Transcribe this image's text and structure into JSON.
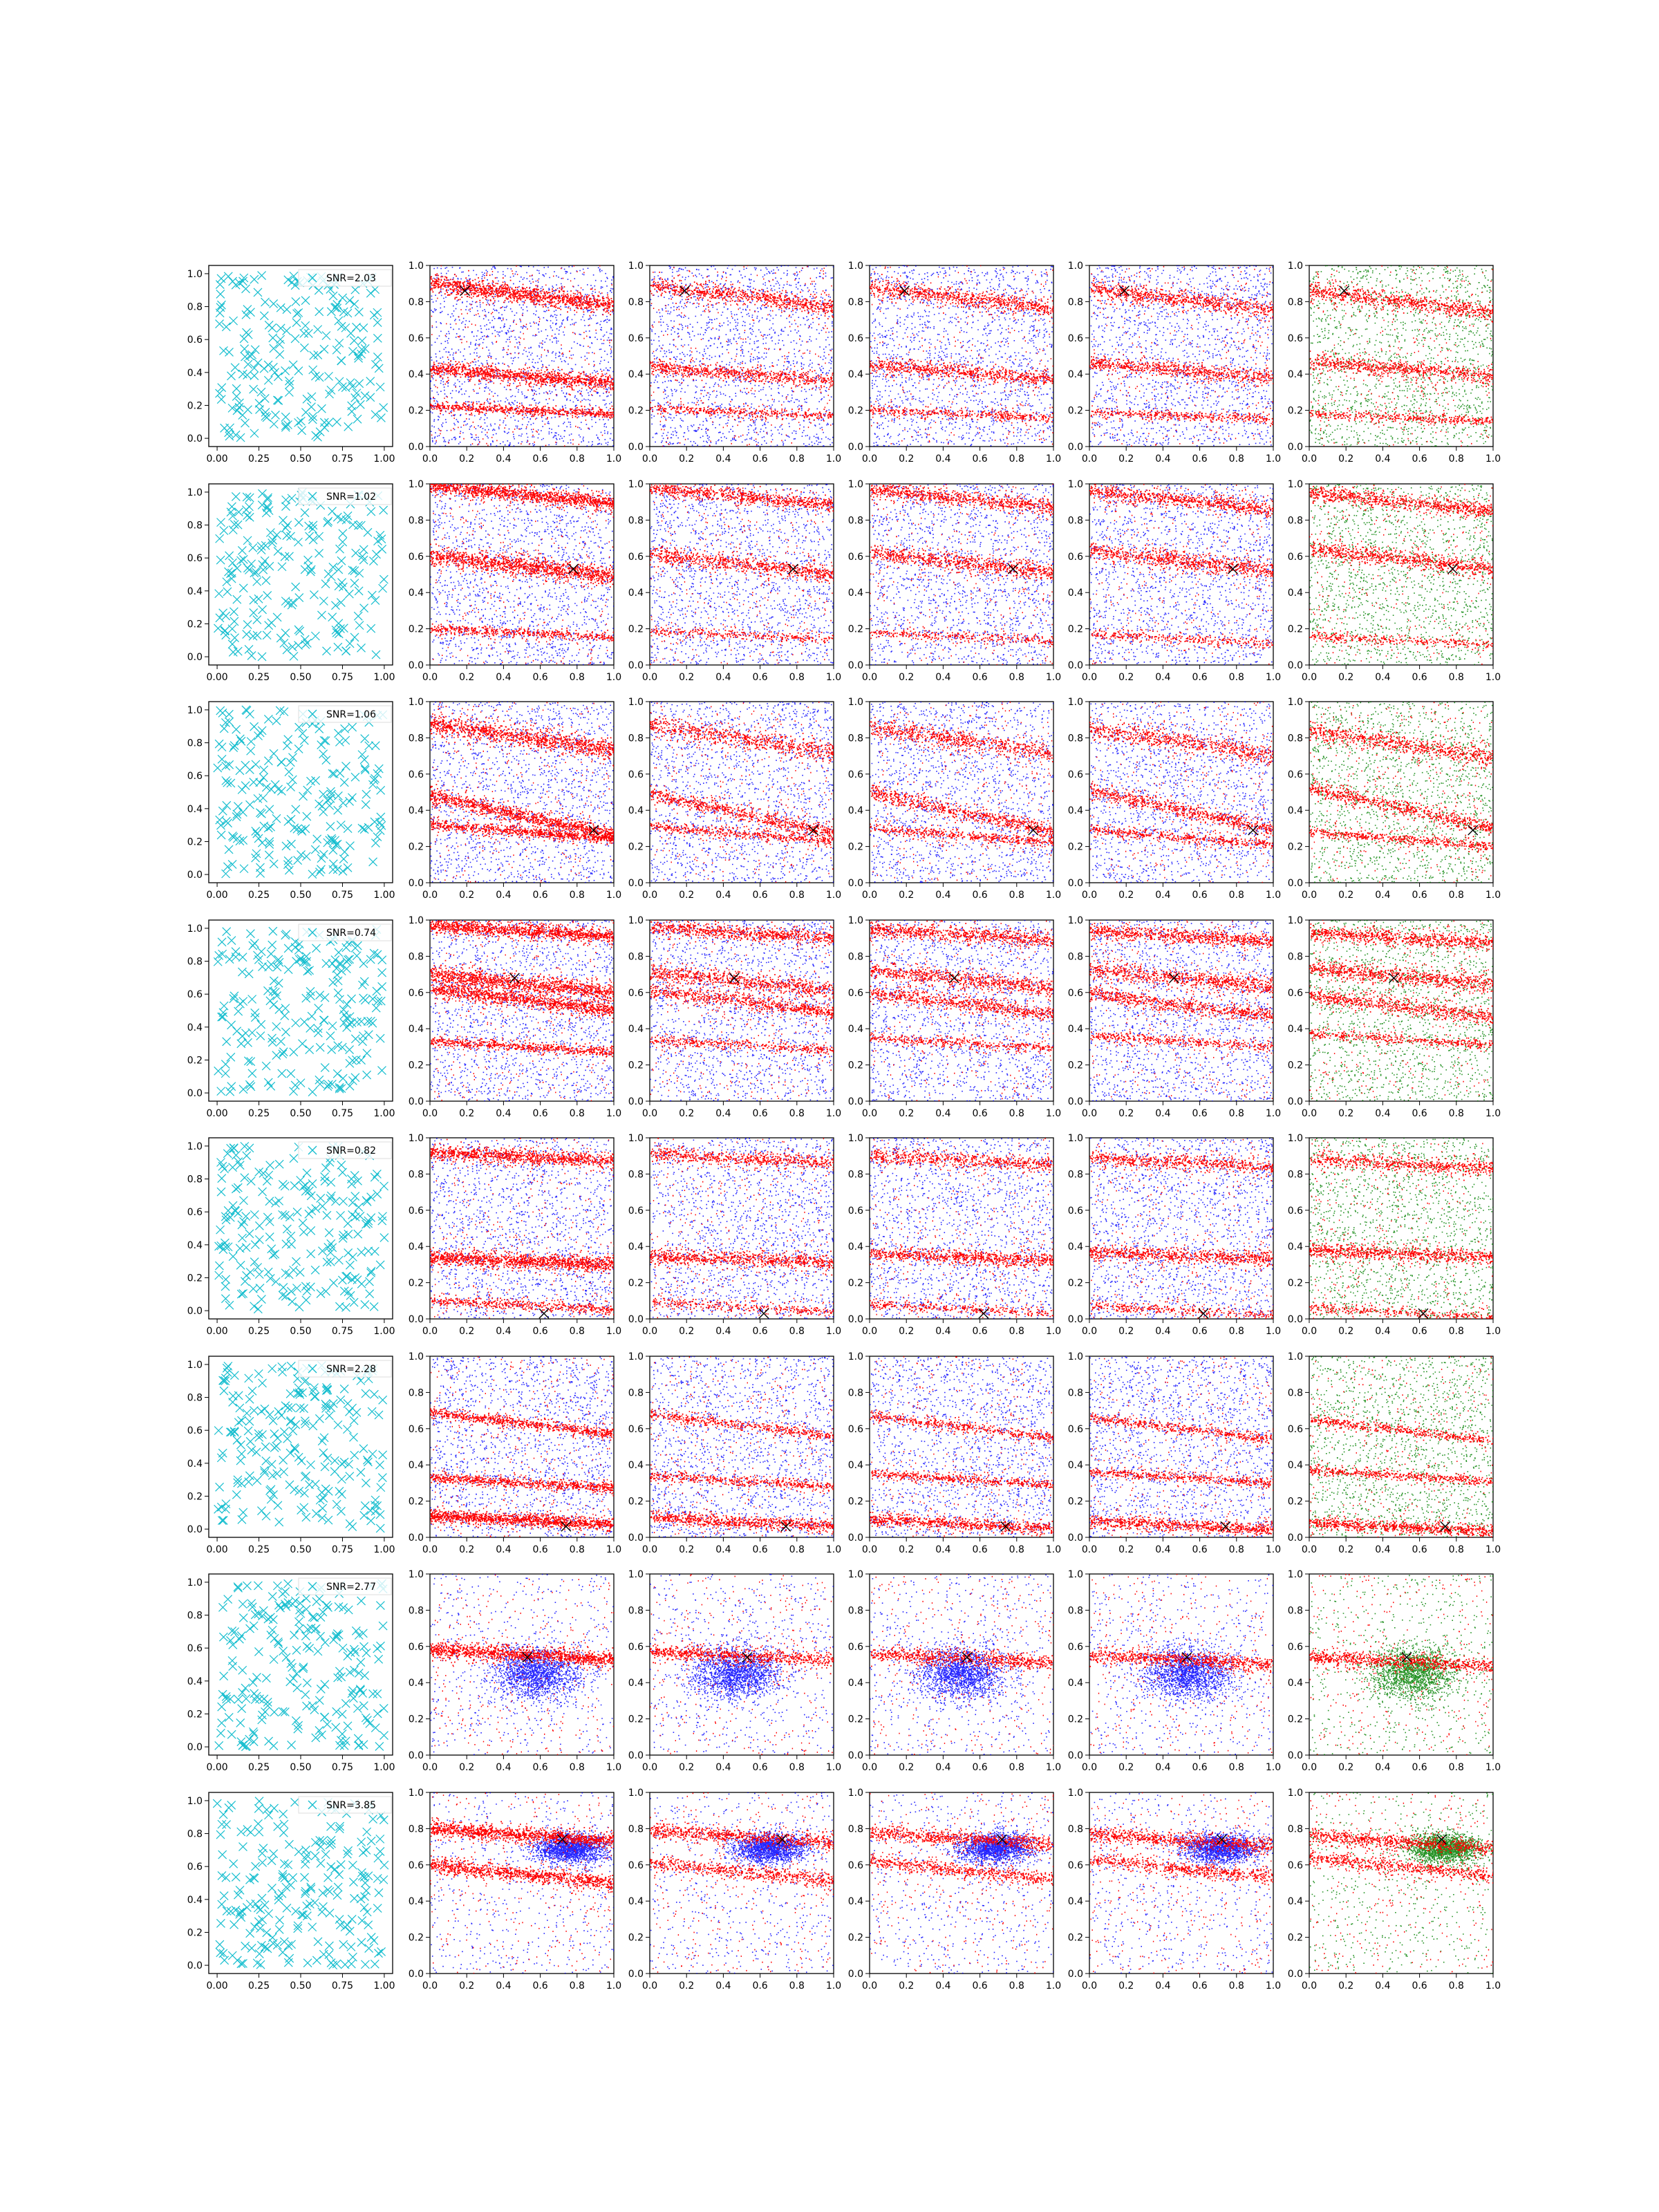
{
  "figure": {
    "rows": 8,
    "cols": 6,
    "background": "#ffffff",
    "colors": {
      "cyan_markers": "#17becf",
      "blue_points": "#0000ff",
      "red_points": "#ff0000",
      "green_points": "#008000",
      "true_position_marker": "#000000",
      "axes": "#000000"
    }
  },
  "chart_data": {
    "type": "scatter",
    "grid": "off",
    "first_column": {
      "description_type": "scatter of cross markers, ~220 uniformly scattered points",
      "marker": "x",
      "color": "#17becf",
      "xlim": [
        -0.05,
        1.05
      ],
      "ylim": [
        -0.05,
        1.05
      ],
      "xticks": [
        "0.00",
        "0.25",
        "0.50",
        "0.75",
        "1.00"
      ],
      "yticks": [
        "0.0",
        "0.2",
        "0.4",
        "0.6",
        "0.8",
        "1.0"
      ],
      "legend_placement": "upper-right"
    },
    "other_columns": {
      "xlim": [
        0,
        1
      ],
      "ylim": [
        0,
        1
      ],
      "xticks": [
        "0.0",
        "0.2",
        "0.4",
        "0.6",
        "0.8",
        "1.0"
      ],
      "yticks": [
        "0.0",
        "0.2",
        "0.4",
        "0.6",
        "0.8",
        "1.0"
      ],
      "column_colors": [
        [
          "#0000ff",
          "#ff0000"
        ],
        [
          "#0000ff",
          "#ff0000"
        ],
        [
          "#0000ff",
          "#ff0000"
        ],
        [
          "#0000ff",
          "#ff0000"
        ],
        [
          "#008000",
          "#ff0000"
        ]
      ]
    },
    "rows": [
      {
        "legend": "SNR=2.03",
        "snr": 2.03,
        "true_position": [
          0.19,
          0.86
        ],
        "bands": [
          {
            "y0": 0.88,
            "slope": -0.12,
            "width": 0.035,
            "density": 1.0
          },
          {
            "y0": 0.45,
            "slope": -0.08,
            "width": 0.03,
            "density": 0.9
          },
          {
            "y0": 0.2,
            "slope": -0.04,
            "width": 0.02,
            "density": 0.5
          }
        ]
      },
      {
        "legend": "SNR=1.02",
        "snr": 1.02,
        "true_position": [
          0.78,
          0.53
        ],
        "bands": [
          {
            "y0": 0.97,
            "slope": -0.1,
            "width": 0.03,
            "density": 1.0
          },
          {
            "y0": 0.62,
            "slope": -0.11,
            "width": 0.035,
            "density": 1.0
          },
          {
            "y0": 0.18,
            "slope": -0.05,
            "width": 0.02,
            "density": 0.4
          }
        ]
      },
      {
        "legend": "SNR=1.06",
        "snr": 1.06,
        "true_position": [
          0.89,
          0.29
        ],
        "bands": [
          {
            "y0": 0.86,
            "slope": -0.15,
            "width": 0.04,
            "density": 0.9
          },
          {
            "y0": 0.5,
            "slope": -0.22,
            "width": 0.03,
            "density": 0.9
          },
          {
            "y0": 0.3,
            "slope": -0.08,
            "width": 0.02,
            "density": 0.6
          }
        ]
      },
      {
        "legend": "SNR=0.74",
        "snr": 0.74,
        "true_position": [
          0.46,
          0.68
        ],
        "bands": [
          {
            "y0": 0.95,
            "slope": -0.06,
            "width": 0.03,
            "density": 1.0
          },
          {
            "y0": 0.72,
            "slope": -0.1,
            "width": 0.035,
            "density": 1.0
          },
          {
            "y0": 0.6,
            "slope": -0.12,
            "width": 0.03,
            "density": 0.9
          },
          {
            "y0": 0.35,
            "slope": -0.06,
            "width": 0.02,
            "density": 0.5
          }
        ]
      },
      {
        "legend": "SNR=0.82",
        "snr": 0.82,
        "true_position": [
          0.62,
          0.03
        ],
        "bands": [
          {
            "y0": 0.9,
            "slope": -0.05,
            "width": 0.03,
            "density": 0.8
          },
          {
            "y0": 0.36,
            "slope": -0.04,
            "width": 0.03,
            "density": 1.0
          },
          {
            "y0": 0.08,
            "slope": -0.05,
            "width": 0.02,
            "density": 0.4
          }
        ]
      },
      {
        "legend": "SNR=2.28",
        "snr": 2.28,
        "true_position": [
          0.74,
          0.06
        ],
        "bands": [
          {
            "y0": 0.67,
            "slope": -0.12,
            "width": 0.02,
            "density": 0.6
          },
          {
            "y0": 0.35,
            "slope": -0.06,
            "width": 0.02,
            "density": 0.6
          },
          {
            "y0": 0.1,
            "slope": -0.05,
            "width": 0.025,
            "density": 1.0
          }
        ]
      },
      {
        "legend": "SNR=2.77",
        "snr": 2.77,
        "true_position": [
          0.53,
          0.54
        ],
        "bands": [
          {
            "y0": 0.56,
            "slope": -0.05,
            "width": 0.03,
            "density": 1.0
          }
        ],
        "blob": [
          0.5,
          0.45,
          0.12,
          0.07
        ]
      },
      {
        "legend": "SNR=3.85",
        "snr": 3.85,
        "true_position": [
          0.72,
          0.74
        ],
        "bands": [
          {
            "y0": 0.78,
            "slope": -0.07,
            "width": 0.03,
            "density": 1.0
          },
          {
            "y0": 0.62,
            "slope": -0.1,
            "width": 0.03,
            "density": 0.8
          }
        ],
        "blob": [
          0.68,
          0.69,
          0.1,
          0.04
        ]
      }
    ]
  }
}
